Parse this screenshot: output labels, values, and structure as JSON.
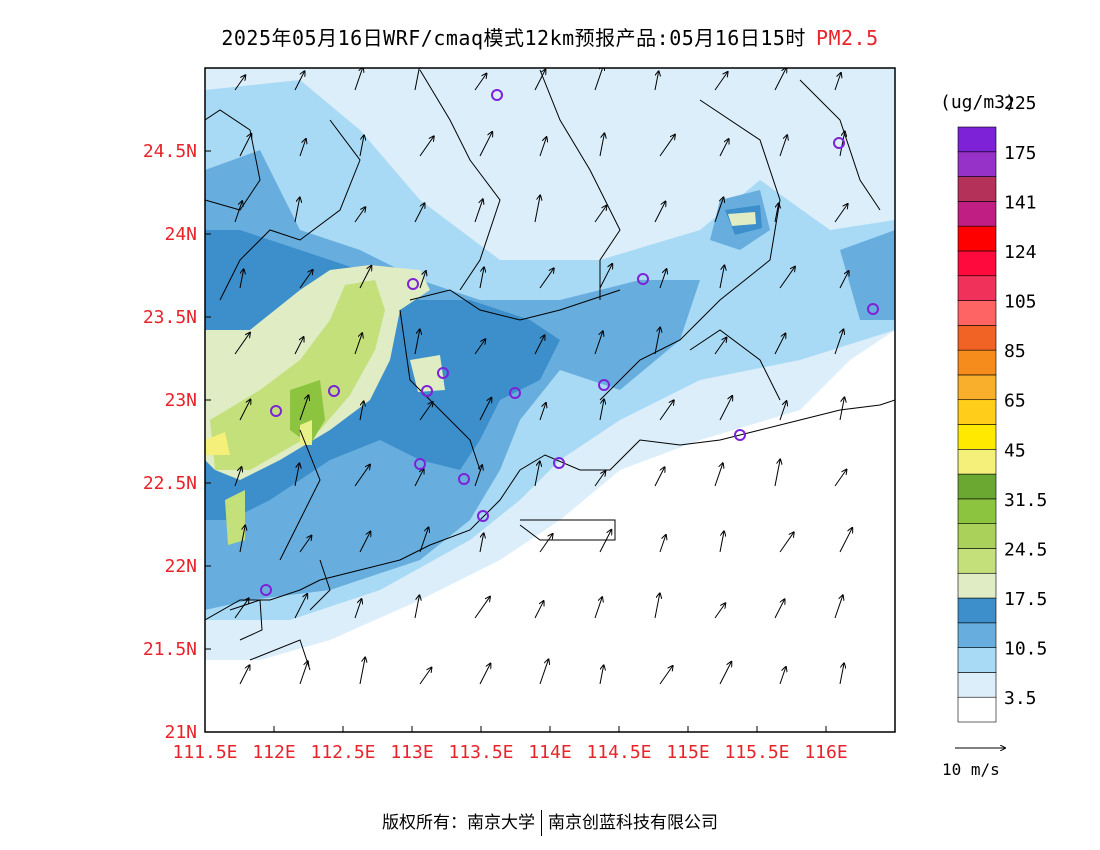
{
  "title": {
    "main": "2025年05月16日WRF/cmaq模式12km预报产品:05月16日15时",
    "product": "PM2.5"
  },
  "colorbar": {
    "unit": "(ug/m3)",
    "colors": [
      "#ffffff",
      "#dbeefa",
      "#a9daf5",
      "#67aede",
      "#3c8fcb",
      "#dfecc4",
      "#c3e07a",
      "#aad15a",
      "#8cc43f",
      "#6aa832",
      "#f5f07a",
      "#ffe900",
      "#ffcd1a",
      "#f9ae2c",
      "#f58c1b",
      "#f16324",
      "#ff6464",
      "#f0325a",
      "#ff0a3c",
      "#ff0000",
      "#c01e82",
      "#b4325a",
      "#9632c8",
      "#7e22d8"
    ],
    "labels": [
      "3.5",
      "10.5",
      "17.5",
      "24.5",
      "31.5",
      "45",
      "65",
      "85",
      "105",
      "124",
      "141",
      "175",
      "225"
    ]
  },
  "axes": {
    "x_ticks": [
      "111.5E",
      "112E",
      "112.5E",
      "113E",
      "113.5E",
      "114E",
      "114.5E",
      "115E",
      "115.5E",
      "116E"
    ],
    "y_ticks": [
      "21N",
      "21.5N",
      "22N",
      "22.5N",
      "23N",
      "23.5N",
      "24N",
      "24.5N"
    ],
    "tick_color": "#e8232a"
  },
  "reference_vector": {
    "label": "10 m/s"
  },
  "footer": {
    "left": "版权所有：南京大学",
    "right": "南京创蓝科技有限公司"
  }
}
